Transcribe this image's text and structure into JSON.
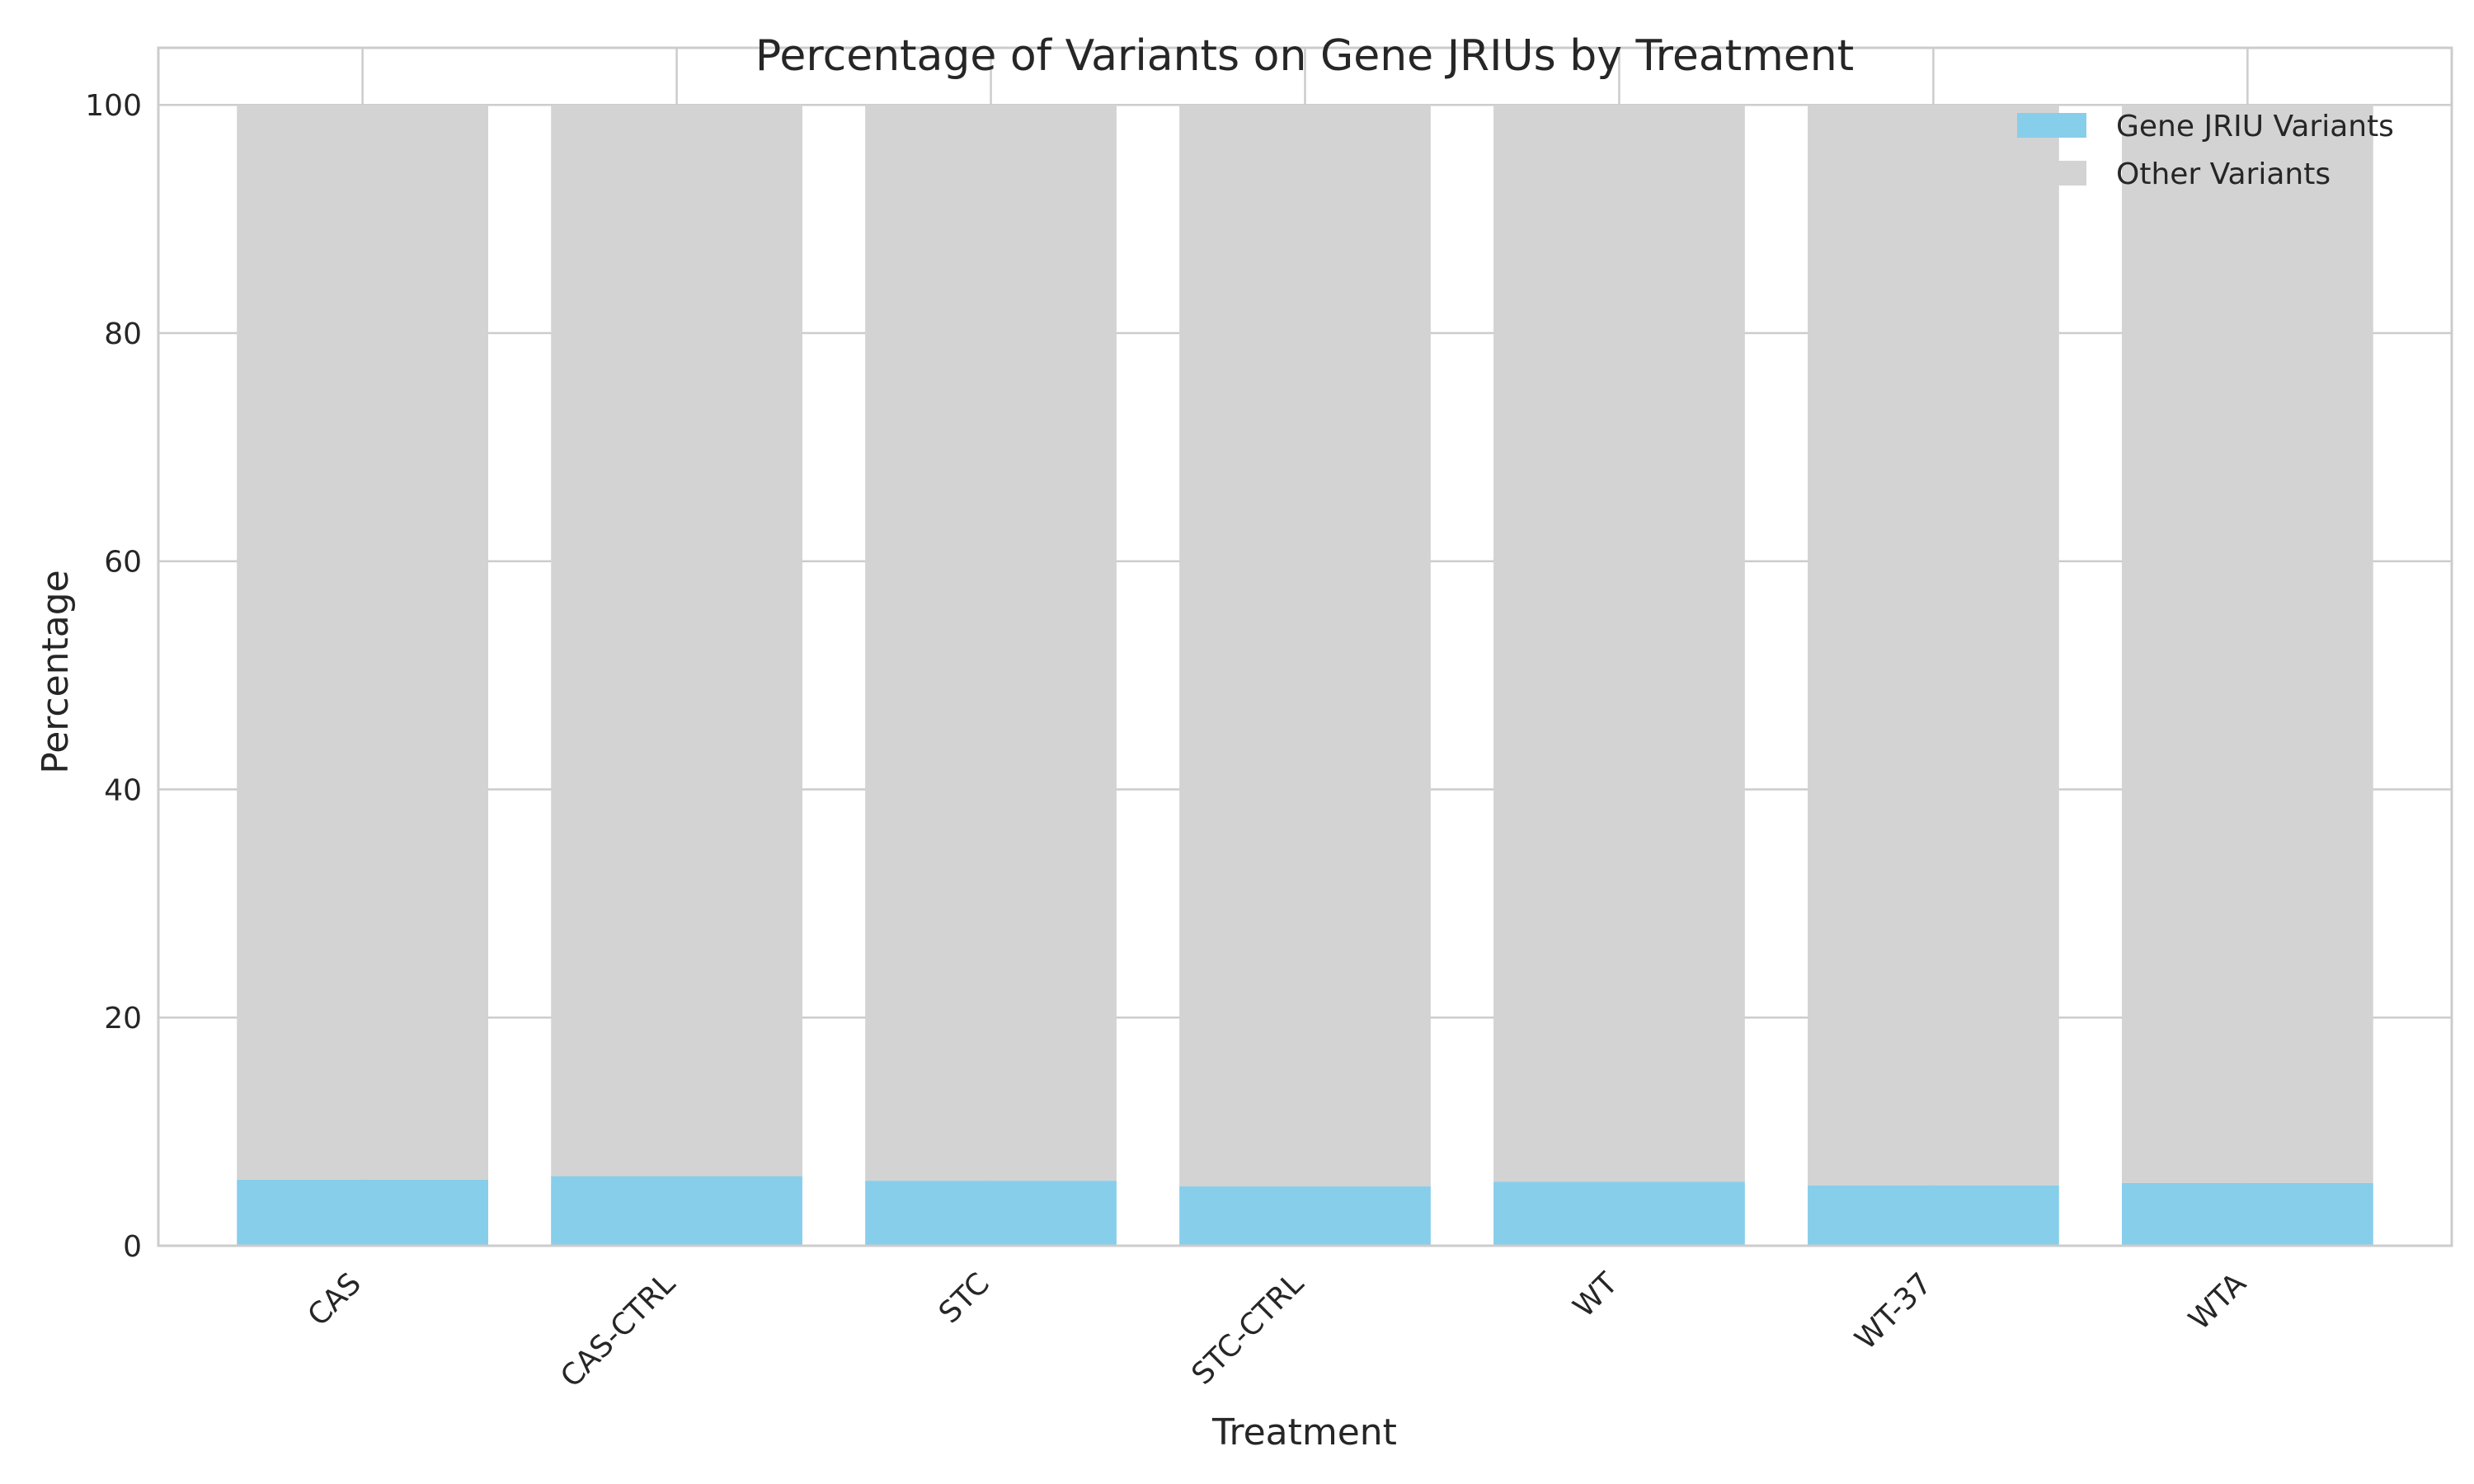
{
  "chart_data": {
    "type": "bar",
    "stacked": true,
    "title": "Percentage of Variants on Gene JRIUs by Treatment",
    "xlabel": "Treatment",
    "ylabel": "Percentage",
    "ylim": [
      0,
      105
    ],
    "yticks": [
      0,
      20,
      40,
      60,
      80,
      100
    ],
    "grid": true,
    "legend_position": "top-right",
    "categories": [
      "CAS",
      "CAS-CTRL",
      "STC",
      "STC-CTRL",
      "WT",
      "WT-37",
      "WTA"
    ],
    "series": [
      {
        "name": "Gene JRIU Variants",
        "color": "#87ceeb",
        "values": [
          5.8,
          6.1,
          5.7,
          5.2,
          5.6,
          5.3,
          5.5
        ]
      },
      {
        "name": "Other Variants",
        "color": "#d3d3d3",
        "values": [
          94.2,
          93.9,
          94.3,
          94.8,
          94.4,
          94.7,
          94.5
        ]
      }
    ]
  }
}
